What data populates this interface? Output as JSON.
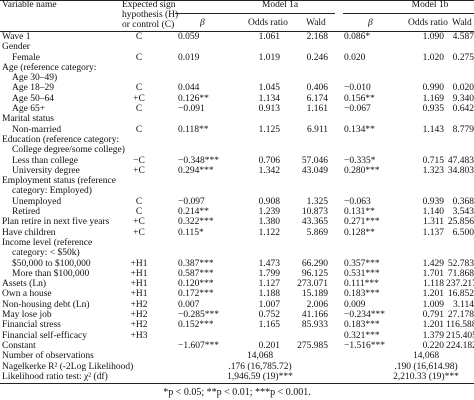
{
  "header": {
    "variable_name": "Variable name",
    "hyp_line1": "Expected sign",
    "hyp_line2": "hypothesis (H)",
    "hyp_line3": "or control (C)",
    "model1": "Model 1a",
    "model2": "Model 1b",
    "beta": "β",
    "odds": "Odds ratio",
    "wald": "Wald"
  },
  "rows": [
    {
      "label": "Wave 1",
      "hyp": "C",
      "b1": "0.059",
      "o1": "1.061",
      "w1": "2.168",
      "b2": "0.086*",
      "o2": "1.090",
      "w2": "4.587"
    },
    {
      "label": "Gender",
      "hyp": "",
      "b1": "",
      "o1": "",
      "w1": "",
      "b2": "",
      "o2": "",
      "w2": ""
    },
    {
      "label": "Female",
      "indent": true,
      "hyp": "C",
      "b1": "0.019",
      "o1": "1.019",
      "w1": "0.246",
      "b2": "0.020",
      "o2": "1.020",
      "w2": "0.275"
    },
    {
      "label": "Age (reference category:",
      "hyp": "",
      "b1": "",
      "o1": "",
      "w1": "",
      "b2": "",
      "o2": "",
      "w2": ""
    },
    {
      "label": "Age 30–49)",
      "indent": true,
      "hyp": "",
      "b1": "",
      "o1": "",
      "w1": "",
      "b2": "",
      "o2": "",
      "w2": ""
    },
    {
      "label": "Age 18–29",
      "indent": true,
      "hyp": "C",
      "b1": "0.044",
      "o1": "1.045",
      "w1": "0.406",
      "b2": "−0.010",
      "o2": "0.990",
      "w2": "0.020"
    },
    {
      "label": "Age 50–64",
      "indent": true,
      "hyp": "+C",
      "b1": "0.126**",
      "o1": "1.134",
      "w1": "6.174",
      "b2": "0.156**",
      "o2": "1.169",
      "w2": "9.340"
    },
    {
      "label": "Age 65+",
      "indent": true,
      "hyp": "C",
      "b1": "−0.091",
      "o1": "0.913",
      "w1": "1.161",
      "b2": "−0.067",
      "o2": "0.935",
      "w2": "0.642"
    },
    {
      "label": "Marital status",
      "hyp": "",
      "b1": "",
      "o1": "",
      "w1": "",
      "b2": "",
      "o2": "",
      "w2": ""
    },
    {
      "label": "Non-married",
      "indent": true,
      "hyp": "C",
      "b1": "0.118**",
      "o1": "1.125",
      "w1": "6.911",
      "b2": "0.134**",
      "o2": "1.143",
      "w2": "8.779"
    },
    {
      "label": "Education (reference category:",
      "hyp": "",
      "b1": "",
      "o1": "",
      "w1": "",
      "b2": "",
      "o2": "",
      "w2": ""
    },
    {
      "label": "College degree/some college)",
      "indent": true,
      "hyp": "",
      "b1": "",
      "o1": "",
      "w1": "",
      "b2": "",
      "o2": "",
      "w2": ""
    },
    {
      "label": "Less than college",
      "indent": true,
      "hyp": "−C",
      "b1": "−0.348***",
      "o1": "0.706",
      "w1": "57.046",
      "b2": "−0.335*",
      "o2": "0.715",
      "w2": "47.483"
    },
    {
      "label": "University degree",
      "indent": true,
      "hyp": "+C",
      "b1": "0.294***",
      "o1": "1.342",
      "w1": "43.049",
      "b2": "0.280***",
      "o2": "1.323",
      "w2": "34.803"
    },
    {
      "label": "Employment status (reference",
      "hyp": "",
      "b1": "",
      "o1": "",
      "w1": "",
      "b2": "",
      "o2": "",
      "w2": ""
    },
    {
      "label": "category: Employed)",
      "indent": true,
      "hyp": "",
      "b1": "",
      "o1": "",
      "w1": "",
      "b2": "",
      "o2": "",
      "w2": ""
    },
    {
      "label": "Unemployed",
      "indent": true,
      "hyp": "C",
      "b1": "−0.097",
      "o1": "0.908",
      "w1": "1.325",
      "b2": "−0.063",
      "o2": "0.939",
      "w2": "0.368"
    },
    {
      "label": "Retired",
      "indent": true,
      "hyp": "C",
      "b1": "0.214**",
      "o1": "1.239",
      "w1": "10.873",
      "b2": "0.131**",
      "o2": "1.140",
      "w2": "3.543"
    },
    {
      "label": "Plan retire in next five years",
      "hyp": "+C",
      "b1": "0.322***",
      "o1": "1.380",
      "w1": "43.365",
      "b2": "0.271***",
      "o2": "1.311",
      "w2": "25.856"
    },
    {
      "label": "Have children",
      "hyp": "+C",
      "b1": "0.115*",
      "o1": "1.122",
      "w1": "5.869",
      "b2": "0.128**",
      "o2": "1.137",
      "w2": "6.500"
    },
    {
      "label": "Income level (reference",
      "hyp": "",
      "b1": "",
      "o1": "",
      "w1": "",
      "b2": "",
      "o2": "",
      "w2": ""
    },
    {
      "label": "category: < $50k)",
      "indent": true,
      "hyp": "",
      "b1": "",
      "o1": "",
      "w1": "",
      "b2": "",
      "o2": "",
      "w2": ""
    },
    {
      "label": "$50,000 to $100,000",
      "indent": true,
      "hyp": "+H1",
      "b1": "0.387***",
      "o1": "1.473",
      "w1": "66.290",
      "b2": "0.357***",
      "o2": "1.429",
      "w2": "52.783"
    },
    {
      "label": "More than $100,000",
      "indent": true,
      "hyp": "+H1",
      "b1": "0.587***",
      "o1": "1.799",
      "w1": "96.125",
      "b2": "0.531***",
      "o2": "1.701",
      "w2": "71.868"
    },
    {
      "label": "Assets (Ln)",
      "hyp": "+H1",
      "b1": "0.120***",
      "o1": "1.127",
      "w1": "273.071",
      "b2": "0.111***",
      "o2": "1.118",
      "w2": "237.217"
    },
    {
      "label": "Own a house",
      "hyp": "+H1",
      "b1": "0.172***",
      "o1": "1.188",
      "w1": "15.189",
      "b2": "0.183***",
      "o2": "1.201",
      "w2": "16.852"
    },
    {
      "label": "Non-housing debt (Ln)",
      "hyp": "+H2",
      "b1": "0.007",
      "o1": "1.007",
      "w1": "2.006",
      "b2": "0.009",
      "o2": "1.009",
      "w2": "3.114"
    },
    {
      "label": "May lose job",
      "hyp": "+H2",
      "b1": "−0.285***",
      "o1": "0.752",
      "w1": "41.166",
      "b2": "−0.234***",
      "o2": "0.791",
      "w2": "27.178"
    },
    {
      "label": "Financial stress",
      "hyp": "+H2",
      "b1": "0.152***",
      "o1": "1.165",
      "w1": "85.933",
      "b2": "0.183***",
      "o2": "1.201",
      "w2": "116.588"
    },
    {
      "label": "Financial self-efficacy",
      "hyp": "+H3",
      "b1": "",
      "o1": "",
      "w1": "",
      "b2": "0.321***",
      "o2": "1.379",
      "w2": "215.405"
    },
    {
      "label": "Constant",
      "hyp": "",
      "b1": "−1.607***",
      "o1": "0.201",
      "w1": "275.985",
      "b2": "−1.516***",
      "o2": "0.220",
      "w2": "224.182"
    },
    {
      "label": "Number of observations",
      "hyp": "",
      "span1": "14,068",
      "span2": "14,068"
    },
    {
      "label": "Nagelkerke R² (-2Log Likelihood)",
      "hyp": "",
      "span1": ".176 (16,785.72)",
      "span2": ".190 (16,614.98)"
    },
    {
      "label": "Likelihood ratio test: χ² (df)",
      "hyp": "",
      "span1": "1,946.59 (19)***",
      "span2": "2,210.33 (19)***"
    }
  ],
  "footnote": "*p < 0.05; **p < 0.01; ***p < 0.001."
}
